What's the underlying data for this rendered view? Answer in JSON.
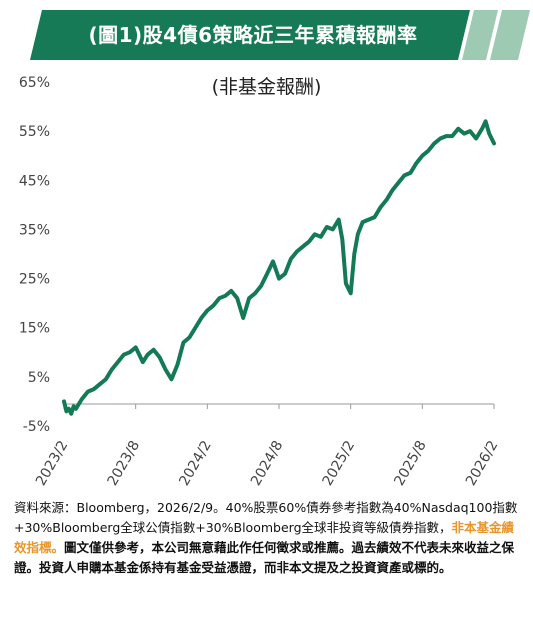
{
  "title": "(圖1)股4債6策略近三年累積報酬率",
  "subtitle": "(非基金報酬)",
  "colors": {
    "banner": "#157a55",
    "banner_light": "#9ec9b3",
    "line": "#137a55",
    "highlight": "#e8962b"
  },
  "chart_data": {
    "type": "line",
    "title": "(圖1)股4債6策略近三年累積報酬率",
    "subtitle": "(非基金報酬)",
    "xlabel": "",
    "ylabel": "",
    "y_ticks": [
      "65%",
      "55%",
      "45%",
      "35%",
      "25%",
      "15%",
      "5%",
      "-5%"
    ],
    "y_tick_values": [
      65,
      55,
      45,
      35,
      25,
      15,
      5,
      -5
    ],
    "x_ticks": [
      "2023/2",
      "2023/8",
      "2024/2",
      "2024/8",
      "2025/2",
      "2025/8",
      "2026/2"
    ],
    "ylim": [
      -5,
      65
    ],
    "xlim": [
      0,
      36
    ],
    "grid": false,
    "series": [
      {
        "x": [
          0,
          0.2,
          0.4,
          0.6,
          0.8,
          1,
          1.5,
          2,
          2.5,
          3,
          3.5,
          4,
          4.5,
          5,
          5.5,
          6,
          6.3,
          6.6,
          7,
          7.5,
          8,
          8.5,
          9,
          9.5,
          10,
          10.5,
          11,
          11.5,
          12,
          12.5,
          13,
          13.5,
          14,
          14.5,
          15,
          15.5,
          16,
          16.5,
          17,
          17.5,
          18,
          18.5,
          19,
          19.5,
          20,
          20.5,
          21,
          21.5,
          22,
          22.5,
          23,
          23.3,
          23.6,
          24,
          24.3,
          24.6,
          25,
          25.5,
          26,
          26.5,
          27,
          27.5,
          28,
          28.5,
          29,
          29.5,
          30,
          30.5,
          31,
          31.5,
          32,
          32.5,
          33,
          33.5,
          34,
          34.5,
          35,
          35.3,
          35.6,
          36
        ],
        "values": [
          0,
          -2,
          -1.5,
          -2.5,
          -1,
          -1.5,
          0.5,
          2,
          2.5,
          3.5,
          4.5,
          6.5,
          8,
          9.5,
          10,
          11,
          9.5,
          8,
          9.5,
          10.5,
          9,
          6.5,
          4.5,
          7.5,
          12,
          13,
          15,
          17,
          18.5,
          19.5,
          21,
          21.5,
          22.5,
          21,
          17,
          21,
          22,
          23.5,
          26,
          28.5,
          25,
          26,
          29,
          30.5,
          31.5,
          32.5,
          34,
          33.5,
          35.5,
          35,
          37,
          33,
          24,
          22,
          30,
          34,
          36.5,
          37,
          37.5,
          39.5,
          41,
          43,
          44.5,
          46,
          46.5,
          48.5,
          50,
          51,
          52.5,
          53.5,
          54,
          54,
          55.5,
          54.5,
          55,
          53.5,
          55.5,
          57,
          54.5,
          52.5
        ]
      }
    ]
  },
  "footer": {
    "source": "資料來源：Bloomberg，2026/2/9。40%股票60%債券參考指數為40%Nasdaq100指數+30%Bloomberg全球公債指數+30%Bloomberg全球非投資等級債券指數，",
    "highlight": "非本基金績效指標。",
    "disclaimer": "圖文僅供參考，本公司無意藉此作任何徵求或推薦。過去績效不代表未來收益之保證。投資人申購本基金係持有基金受益憑證，而非本文提及之投資資產或標的。"
  }
}
